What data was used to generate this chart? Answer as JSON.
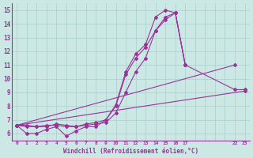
{
  "xlabel": "Windchill (Refroidissement éolien,°C)",
  "bg_color": "#cce8e4",
  "grid_color": "#aacfcb",
  "line_color": "#993399",
  "xlim": [
    -0.5,
    23.5
  ],
  "ylim": [
    5.5,
    15.5
  ],
  "xticks": [
    0,
    1,
    2,
    3,
    4,
    5,
    6,
    7,
    8,
    9,
    10,
    11,
    12,
    13,
    14,
    15,
    16,
    17,
    22,
    23
  ],
  "yticks": [
    6,
    7,
    8,
    9,
    10,
    11,
    12,
    13,
    14,
    15
  ],
  "series": [
    {
      "x": [
        0,
        1,
        2,
        3,
        4,
        5,
        6,
        7,
        8,
        9,
        10,
        11,
        12,
        13,
        14,
        15,
        16,
        17
      ],
      "y": [
        6.6,
        6.6,
        6.5,
        6.5,
        6.7,
        6.6,
        6.5,
        6.7,
        6.8,
        7.0,
        8.1,
        10.5,
        11.8,
        12.5,
        14.5,
        15.0,
        14.8,
        11.0
      ]
    },
    {
      "x": [
        0,
        1,
        2,
        3,
        4,
        5,
        6,
        7,
        8,
        9,
        10,
        11,
        12,
        13,
        14,
        15,
        16,
        17
      ],
      "y": [
        6.6,
        6.0,
        6.0,
        6.3,
        6.5,
        5.8,
        6.2,
        6.5,
        6.5,
        7.0,
        8.0,
        10.3,
        11.5,
        12.3,
        13.5,
        14.5,
        14.8,
        11.0
      ]
    },
    {
      "x": [
        0,
        1,
        2,
        3,
        4,
        5,
        6,
        7,
        8,
        9,
        10,
        11,
        12,
        13,
        14,
        15,
        16,
        17,
        22,
        23
      ],
      "y": [
        6.6,
        6.5,
        6.5,
        6.6,
        6.6,
        6.5,
        6.5,
        6.6,
        6.7,
        6.8,
        7.5,
        9.0,
        10.5,
        11.5,
        13.5,
        14.3,
        14.8,
        11.0,
        9.2,
        9.2
      ]
    },
    {
      "x": [
        0,
        22
      ],
      "y": [
        6.6,
        11.0
      ]
    },
    {
      "x": [
        0,
        23
      ],
      "y": [
        6.6,
        9.1
      ]
    }
  ]
}
